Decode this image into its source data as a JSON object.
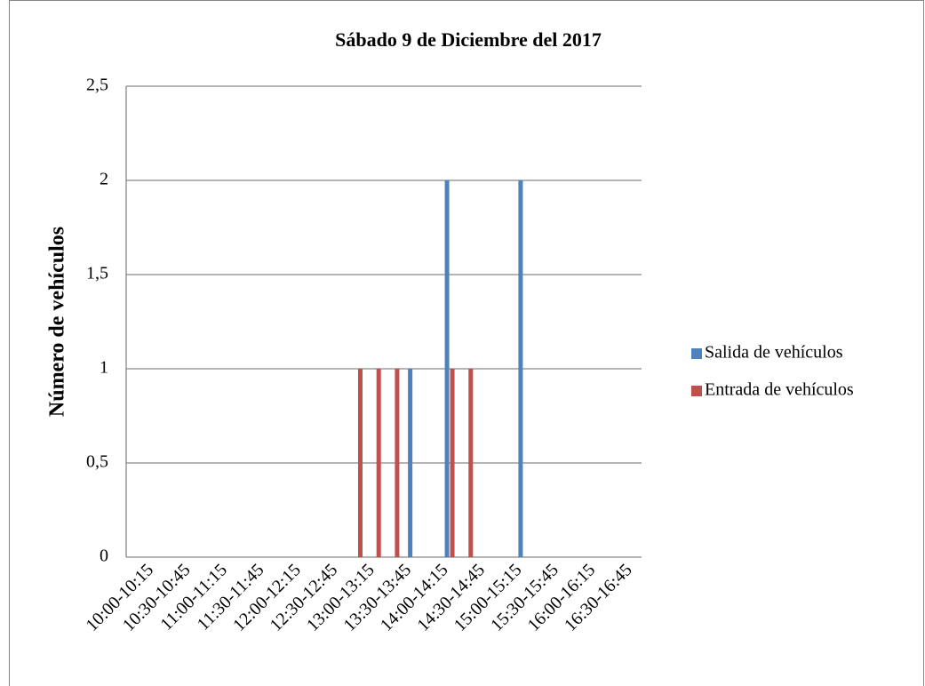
{
  "chart_data": {
    "type": "bar",
    "title": "Sábado 9 de Diciembre del 2017",
    "ylabel": "Número de vehículos",
    "categories": [
      "10:00-10:15",
      null,
      "10:30-10:45",
      null,
      "11:00-11:15",
      null,
      "11:30-11:45",
      null,
      "12:00-12:15",
      null,
      "12:30-12:45",
      null,
      "13:00-13:15",
      null,
      "13:30-13:45",
      null,
      "14:00-14:15",
      null,
      "14:30-14:45",
      null,
      "15:00-15:15",
      null,
      "15:30-15:45",
      null,
      "16:00-16:15",
      null,
      "16:30-16:45",
      null
    ],
    "series": [
      {
        "name": "Salida de vehículos",
        "color": "#4f81bd",
        "values": [
          0,
          0,
          0,
          0,
          0,
          0,
          0,
          0,
          0,
          0,
          0,
          0,
          0,
          0,
          0,
          1,
          0,
          2,
          0,
          0,
          0,
          2,
          0,
          0,
          0,
          0,
          0,
          0
        ]
      },
      {
        "name": "Entrada de vehículos",
        "color": "#c0504d",
        "values": [
          0,
          0,
          0,
          0,
          0,
          0,
          0,
          0,
          0,
          0,
          0,
          0,
          1,
          1,
          1,
          0,
          0,
          1,
          1,
          0,
          0,
          0,
          0,
          0,
          0,
          0,
          0,
          0
        ]
      }
    ],
    "ylim": [
      0,
      2.5
    ],
    "yticks": [
      0,
      {
        "value": 0.5,
        "label": "0,5"
      },
      1,
      {
        "value": 1.5,
        "label": "1,5"
      },
      2,
      {
        "value": 2.5,
        "label": "2,5"
      }
    ],
    "grid": true,
    "legend": "right"
  }
}
